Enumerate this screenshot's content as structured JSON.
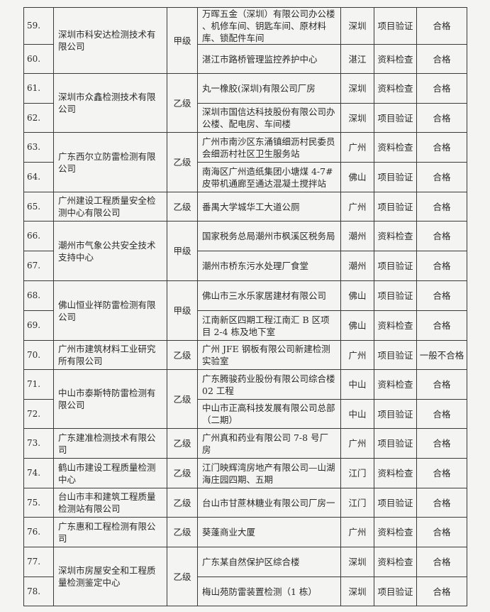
{
  "rows": [
    {
      "no": "59.",
      "company": "深圳市科安达检测技术有限公司",
      "grade": "甲级",
      "project": "万晖五金（深圳）有限公司办公楼 、机修车间、钥匙车间、原材料库、锁配件车间",
      "city": "深圳",
      "type": "项目验证",
      "result": "合格"
    },
    {
      "no": "60.",
      "project": "湛江市路桥管理监控养护中心",
      "city": "湛江",
      "type": "资料检查",
      "result": "合格"
    },
    {
      "no": "61.",
      "company": "深圳市众鑫检测技术有限公司",
      "grade": "乙级",
      "project": "丸一橡胶(深圳)有限公司厂房",
      "city": "深圳",
      "type": "资料检查",
      "result": "合格"
    },
    {
      "no": "62.",
      "project": "深圳市国信达科技股份有限公司办公楼、配电房、车间楼",
      "city": "深圳",
      "type": "项目验证",
      "result": "合格"
    },
    {
      "no": "63.",
      "company": "广东西尔立防雷检测有限公司",
      "grade": "乙级",
      "project": "广州市南沙区东涌镇细沥村民委员会细沥村社区卫生服务站",
      "city": "广州",
      "type": "资料检查",
      "result": "合格"
    },
    {
      "no": "64.",
      "project": "南海区广州造纸集团小塘煤 4-7#皮带机通廊至通达混凝土搅拌站",
      "city": "佛山",
      "type": "项目验证",
      "result": "合格"
    },
    {
      "no": "65.",
      "company": "广州建设工程质量安全检测中心有限公司",
      "grade": "乙级",
      "project": "番禺大学城华工大道公厕",
      "city": "广州",
      "type": "项目验证",
      "result": "合格"
    },
    {
      "no": "66.",
      "company": "潮州市气象公共安全技术支持中心",
      "grade": "甲级",
      "project": "国家税务总局潮州市枫溪区税务局",
      "city": "潮州",
      "type": "资料检查",
      "result": "合格"
    },
    {
      "no": "67.",
      "project": "潮州市桥东污水处理厂食堂",
      "city": "潮州",
      "type": "项目验证",
      "result": "合格"
    },
    {
      "no": "68.",
      "company": "佛山恒业祥防雷检测有限公司",
      "grade": "甲级",
      "project": "佛山市三水乐家居建材有限公司",
      "city": "佛山",
      "type": "项目验证",
      "result": "合格"
    },
    {
      "no": "69.",
      "project": "江南新区四期工程江南汇 B 区项目 2-4 栋及地下室",
      "city": "佛山",
      "type": "资料检查",
      "result": "合格"
    },
    {
      "no": "70.",
      "company": "广州市建筑材料工业研究所有限公司",
      "grade": "乙级",
      "project": "广州 JFE 钢板有限公司新建检测实验室",
      "city": "广州",
      "type": "项目验证",
      "result": "一般不合格"
    },
    {
      "no": "71.",
      "company": "中山市泰斯特防雷检测有限公司",
      "grade": "乙级",
      "project": "广东腾骏药业股份有限公司综合楼 02 工程",
      "city": "中山",
      "type": "资料检查",
      "result": "合格"
    },
    {
      "no": "72.",
      "project": "中山市正高科技发展有限公司总部（二期）",
      "city": "中山",
      "type": "项目验证",
      "result": "合格"
    },
    {
      "no": "73.",
      "company": "广东建准检测技术有限公司",
      "grade": "乙级",
      "project": "广州真和药业有限公司 7-8 号厂房",
      "city": "广州",
      "type": "项目验证",
      "result": "合格"
    },
    {
      "no": "74.",
      "company": "鹤山市建设工程质量检测中心",
      "grade": "乙级",
      "project": "江门映辉湾房地产有限公司—山湖海庄园四期、五期",
      "city": "江门",
      "type": "资料检查",
      "result": "合格"
    },
    {
      "no": "75.",
      "company": "台山市丰和建筑工程质量检测站有限公司",
      "grade": "乙级",
      "project": "台山市甘蔗林糖业有限公司厂房一",
      "city": "江门",
      "type": "项目验证",
      "result": "合格"
    },
    {
      "no": "76.",
      "company": "广东惠和工程检测有限公司",
      "grade": "乙级",
      "project": "葵蓬商业大厦",
      "city": "广州",
      "type": "资料检查",
      "result": "合格"
    },
    {
      "no": "77.",
      "company": "深圳市房屋安全和工程质量检测鉴定中心",
      "grade": "乙级",
      "project": "广东某自然保护区综合楼",
      "city": "深圳",
      "type": "资料检查",
      "result": "合格"
    },
    {
      "no": "78.",
      "project": "梅山苑防雷装置检测（1 栋）",
      "city": "深圳",
      "type": "项目验证",
      "result": "合格"
    }
  ]
}
